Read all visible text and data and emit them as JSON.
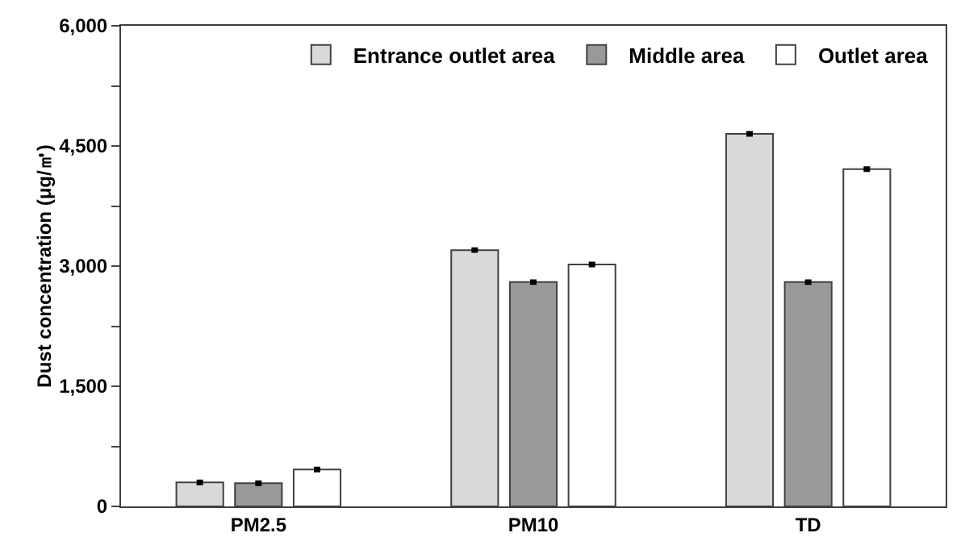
{
  "chart_data": {
    "type": "bar",
    "ylabel": "Dust concentration (μg/㎥)",
    "categories": [
      "PM2.5",
      "PM10",
      "TD"
    ],
    "series": [
      {
        "name": "Entrance outlet area",
        "color": "#d9d9d9",
        "values": [
          300,
          3200,
          4650
        ],
        "errors": [
          15,
          15,
          15
        ]
      },
      {
        "name": "Middle area",
        "color": "#999999",
        "values": [
          290,
          2800,
          2800
        ],
        "errors": [
          15,
          15,
          15
        ]
      },
      {
        "name": "Outlet area",
        "color": "#ffffff",
        "values": [
          460,
          3020,
          4210
        ],
        "errors": [
          15,
          15,
          15
        ]
      }
    ],
    "ylim": [
      0,
      6000
    ],
    "yticks": [
      0,
      {
        "value": 750,
        "label": null
      },
      {
        "value": 1500,
        "label": "1,500"
      },
      {
        "value": 2250,
        "label": null
      },
      {
        "value": 3000,
        "label": "3,000"
      },
      {
        "value": 3750,
        "label": null
      },
      {
        "value": 4500,
        "label": "4,500"
      },
      {
        "value": 5250,
        "label": null
      },
      {
        "value": 6000,
        "label": "6,000"
      }
    ],
    "grid": false,
    "legend": "top right"
  }
}
